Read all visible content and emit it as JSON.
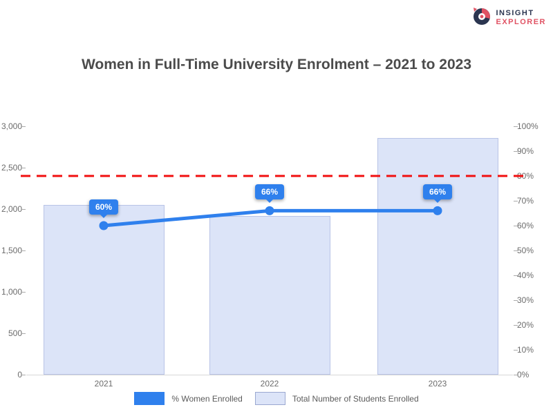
{
  "logo": {
    "line1": "INSIGHT",
    "line2": "EXPLORER"
  },
  "title": "Women in Full-Time University Enrolment – 2021 to 2023",
  "chart_data": {
    "type": "combo",
    "title": "Women in Full-Time University Enrolment – 2021 to 2023",
    "categories": [
      "2021",
      "2022",
      "2023"
    ],
    "series": [
      {
        "name": "% Women Enrolled",
        "type": "line",
        "axis": "right",
        "values": [
          60,
          66,
          66
        ],
        "data_labels": [
          "60%",
          "66%",
          "66%"
        ],
        "color": "#2f80ed"
      },
      {
        "name": "Total Number of Students Enrolled",
        "type": "bar",
        "axis": "left",
        "values": [
          2050,
          1920,
          2860
        ],
        "color": "#dce4f8",
        "border_color": "#b8c3e6"
      }
    ],
    "target_line": {
      "value": 80,
      "axis": "right",
      "color": "#f10f0f",
      "style": "dashed"
    },
    "left_axis": {
      "min": 0,
      "max": 3000,
      "ticks": [
        "3,000",
        "2,500",
        "2,000",
        "1,500",
        "1,000",
        "500",
        "0"
      ]
    },
    "right_axis": {
      "min": 0,
      "max": 100,
      "ticks": [
        "100%",
        "90%",
        "80%",
        "70%",
        "60%",
        "50%",
        "40%",
        "30%",
        "20%",
        "10%",
        "0%"
      ]
    },
    "grid": false,
    "legend_position": "bottom"
  },
  "legend": {
    "items": [
      {
        "label": "% Women Enrolled",
        "color": "#2f80ed",
        "border": "#2f80ed"
      },
      {
        "label": "Total Number of Students Enrolled",
        "color": "#dce4f8",
        "border": "#9aa8d0"
      }
    ]
  }
}
